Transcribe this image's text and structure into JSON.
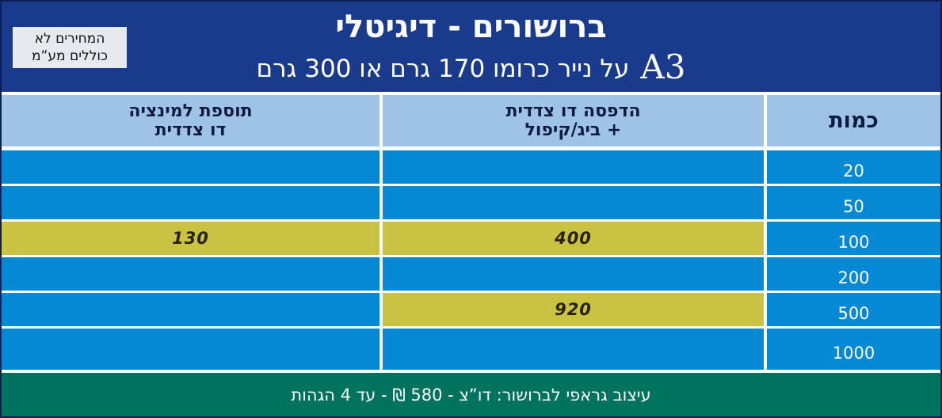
{
  "header": {
    "title": "ברושורים - דיגיטלי",
    "subtitle_size": "A3",
    "subtitle_text": "על נייר כרומו 170 גרם או 300 גרם",
    "note_line1": "המחירים לא",
    "note_line2": "כוללים מע”מ"
  },
  "table": {
    "headers": {
      "quantity": "כמות",
      "print_line1": "הדפסה דו צדדית",
      "print_line2": "+ ביג/קיפול",
      "lamination_line1": "תוספת למינציה",
      "lamination_line2": "דו צדדית"
    },
    "rows": [
      {
        "quantity": "20",
        "print_price": "",
        "lamination_price": ""
      },
      {
        "quantity": "50",
        "print_price": "",
        "lamination_price": ""
      },
      {
        "quantity": "100",
        "print_price": "400",
        "lamination_price": "130"
      },
      {
        "quantity": "200",
        "print_price": "",
        "lamination_price": ""
      },
      {
        "quantity": "500",
        "print_price": "920",
        "lamination_price": ""
      },
      {
        "quantity": "1000",
        "print_price": "",
        "lamination_price": ""
      }
    ]
  },
  "footer": {
    "text": "עיצוב גראפי לברושור: דו”צ - 580 ₪ - עד 4 הגהות"
  },
  "colors": {
    "header_bg": "#1a3b8c",
    "table_header_bg": "#9fc3e7",
    "cell_bg": "#0589d4",
    "highlight_bg": "#c9c243",
    "footer_bg": "#00735e"
  }
}
